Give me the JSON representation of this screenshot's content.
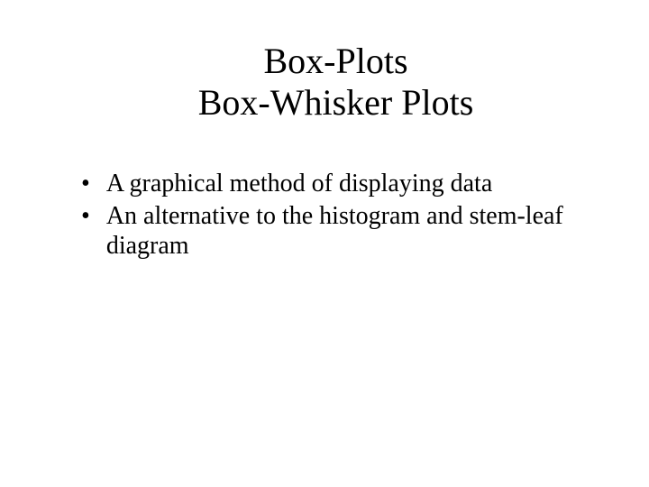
{
  "slide": {
    "title_line1": "Box-Plots",
    "title_line2": "Box-Whisker Plots",
    "bullets": [
      "A graphical method of displaying data",
      "An alternative to the histogram and stem-leaf diagram"
    ],
    "background_color": "#ffffff",
    "text_color": "#000000",
    "title_fontsize": 40,
    "body_fontsize": 28,
    "font_family": "Times New Roman",
    "bullet_marker": "•"
  }
}
